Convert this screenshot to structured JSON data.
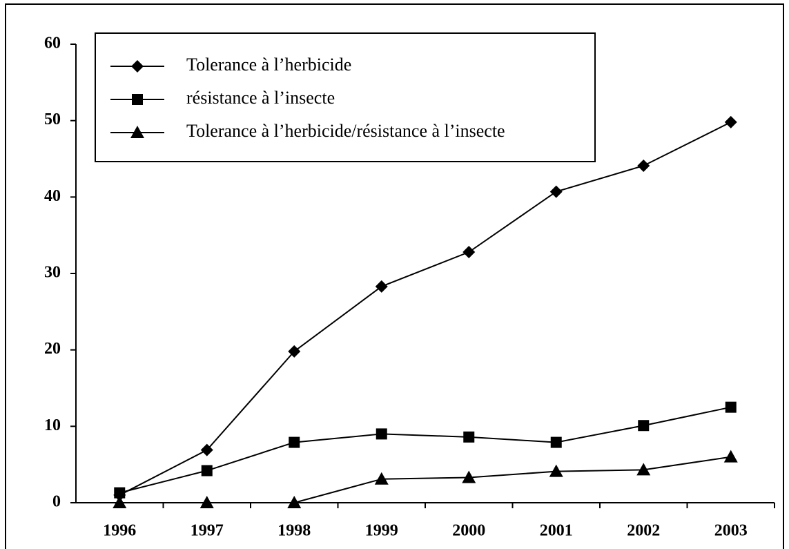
{
  "chart_data": {
    "type": "line",
    "categories": [
      "1996",
      "1997",
      "1998",
      "1999",
      "2000",
      "2001",
      "2002",
      "2003"
    ],
    "series": [
      {
        "name": "Tolerance à l’herbicide",
        "color": "#000000",
        "marker": "diamond",
        "values": [
          1.0,
          6.9,
          19.8,
          28.3,
          32.8,
          40.7,
          44.1,
          49.8
        ]
      },
      {
        "name": "résistance à l’insecte",
        "color": "#000000",
        "marker": "square",
        "values": [
          1.3,
          4.2,
          7.9,
          9.0,
          8.6,
          7.9,
          10.1,
          12.5
        ]
      },
      {
        "name": "Tolerance à l’herbicide/résistance à l’insecte",
        "color": "#000000",
        "marker": "triangle",
        "values": [
          0,
          0,
          0,
          3.1,
          3.3,
          4.1,
          4.3,
          6.0
        ]
      }
    ],
    "ylim": [
      0,
      60
    ],
    "yticks": [
      0,
      10,
      20,
      30,
      40,
      50,
      60
    ],
    "grid": false,
    "legend": "top-left"
  }
}
